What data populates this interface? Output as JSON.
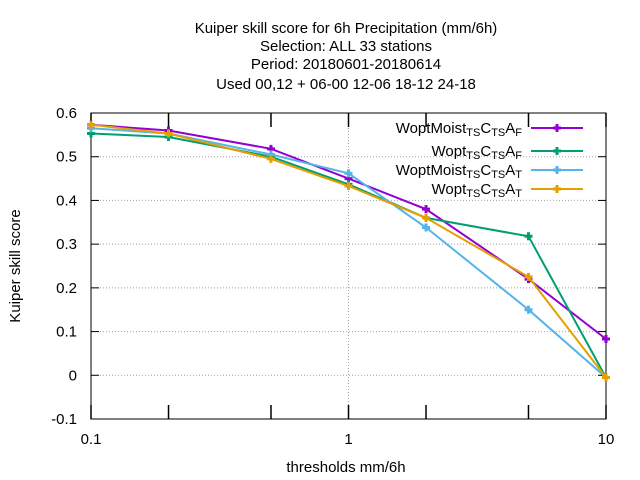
{
  "chart_data": {
    "type": "line",
    "title_lines": [
      "Kuiper skill score  for 6h Precipitation (mm/6h)",
      "Selection: ALL     33 stations",
      "Period: 20180601-20180614",
      "Used  00,12  + 06-00 12-06 18-12 24-18"
    ],
    "xlabel": "thresholds mm/6h",
    "ylabel": "Kuiper skill score",
    "x_scale": "log",
    "xlim": [
      0.1,
      10
    ],
    "ylim": [
      -0.1,
      0.6
    ],
    "x_ticks": [
      0.1,
      1,
      10
    ],
    "x_tick_labels": [
      "0.1",
      "1",
      "10"
    ],
    "x_minor_ticks": [
      0.2,
      0.5,
      2,
      5
    ],
    "y_ticks": [
      -0.1,
      0,
      0.1,
      0.2,
      0.3,
      0.4,
      0.5,
      0.6
    ],
    "y_tick_labels": [
      "-0.1",
      "0",
      "0.1",
      "0.2",
      "0.3",
      "0.4",
      "0.5",
      "0.6"
    ],
    "grid": true,
    "legend_position": "top-right",
    "x": [
      0.1,
      0.2,
      0.5,
      1,
      2,
      5,
      10
    ],
    "series": [
      {
        "name": "WoptMoist",
        "legend_parts": [
          [
            "WoptMoist",
            ""
          ],
          [
            "TS",
            "sub"
          ],
          [
            "C",
            ""
          ],
          [
            "TS",
            "sub"
          ],
          [
            "A",
            ""
          ],
          [
            "F",
            "sub"
          ]
        ],
        "color": "#9400d3",
        "marker": "plus",
        "values": [
          0.573,
          0.56,
          0.518,
          0.45,
          0.38,
          0.22,
          0.083
        ]
      },
      {
        "name": "Wopt",
        "legend_parts": [
          [
            "Wopt",
            ""
          ],
          [
            "TS",
            "sub"
          ],
          [
            "C",
            ""
          ],
          [
            "TS",
            "sub"
          ],
          [
            "A",
            ""
          ],
          [
            "F",
            "sub"
          ]
        ],
        "color": "#009e73",
        "marker": "plus",
        "values": [
          0.553,
          0.545,
          0.5,
          0.437,
          0.36,
          0.318,
          -0.005
        ]
      },
      {
        "name": "WoptMoist",
        "legend_parts": [
          [
            "WoptMoist",
            ""
          ],
          [
            "TS",
            "sub"
          ],
          [
            "C",
            ""
          ],
          [
            "TS",
            "sub"
          ],
          [
            "A",
            ""
          ],
          [
            "T",
            "sub"
          ]
        ],
        "color": "#56b4e9",
        "marker": "plus",
        "values": [
          0.565,
          0.553,
          0.505,
          0.462,
          0.338,
          0.15,
          -0.005
        ]
      },
      {
        "name": "Wopt",
        "legend_parts": [
          [
            "Wopt",
            ""
          ],
          [
            "TS",
            "sub"
          ],
          [
            "C",
            ""
          ],
          [
            "TS",
            "sub"
          ],
          [
            "A",
            ""
          ],
          [
            "T",
            "sub"
          ]
        ],
        "color": "#e69f00",
        "marker": "plus",
        "values": [
          0.573,
          0.553,
          0.495,
          0.433,
          0.36,
          0.225,
          -0.005
        ]
      }
    ]
  }
}
